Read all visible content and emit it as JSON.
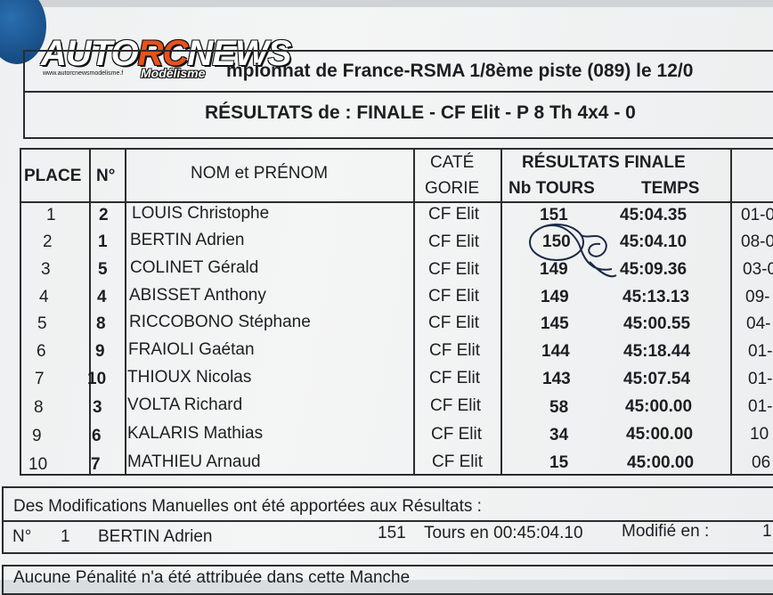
{
  "logo": {
    "brand_a": "AUTO",
    "brand_b": "RC",
    "brand_c": "NEWS",
    "sub": "Modélisme",
    "url": "www.autorcnewsmodelisme.f"
  },
  "header": {
    "title": "mpionnat de France-RSMA 1/8ème piste  (089) le 12/0",
    "results_line": "RÉSULTATS de :   FINALE  -  CF Elit  -  P 8 Th 4x4  -  0"
  },
  "table": {
    "col_place": "PLACE",
    "col_num": "N°",
    "col_name": "NOM et PRÉNOM",
    "col_cat_1": "CATÉ",
    "col_cat_2": "GORIE",
    "col_results": "RÉSULTATS FINALE",
    "col_laps": "Nb TOURS",
    "col_time": "TEMPS",
    "rows": [
      {
        "place": "1",
        "num": "2",
        "name": "LOUIS Christophe",
        "cat": "CF Elit",
        "laps": "151",
        "time": "45:04.35",
        "extra": "01-0"
      },
      {
        "place": "2",
        "num": "1",
        "name": "BERTIN Adrien",
        "cat": "CF Elit",
        "laps": "150",
        "time": "45:04.10",
        "extra": "08-0"
      },
      {
        "place": "3",
        "num": "5",
        "name": "COLINET Gérald",
        "cat": "CF Elit",
        "laps": "149",
        "time": "45:09.36",
        "extra": "03-0"
      },
      {
        "place": "4",
        "num": "4",
        "name": "ABISSET Anthony",
        "cat": "CF Elit",
        "laps": "149",
        "time": "45:13.13",
        "extra": "09-"
      },
      {
        "place": "5",
        "num": "8",
        "name": "RICCOBONO Stéphane",
        "cat": "CF Elit",
        "laps": "145",
        "time": "45:00.55",
        "extra": "04-"
      },
      {
        "place": "6",
        "num": "9",
        "name": "FRAIOLI Gaétan",
        "cat": "CF Elit",
        "laps": "144",
        "time": "45:18.44",
        "extra": "01-"
      },
      {
        "place": "7",
        "num": "10",
        "name": "THIOUX Nicolas",
        "cat": "CF Elit",
        "laps": "143",
        "time": "45:07.54",
        "extra": "01-"
      },
      {
        "place": "8",
        "num": "3",
        "name": "VOLTA Richard",
        "cat": "CF Elit",
        "laps": "58",
        "time": "45:00.00",
        "extra": "01-"
      },
      {
        "place": "9",
        "num": "6",
        "name": "KALARIS Mathias",
        "cat": "CF Elit",
        "laps": "34",
        "time": "45:00.00",
        "extra": "10"
      },
      {
        "place": "10",
        "num": "7",
        "name": "MATHIEU Arnaud",
        "cat": "CF Elit",
        "laps": "15",
        "time": "45:00.00",
        "extra": "06"
      }
    ]
  },
  "modifications": {
    "heading": "Des Modifications Manuelles ont été apportées aux Résultats :",
    "num_label": "N°",
    "num": "1",
    "name": "BERTIN Adrien",
    "laps": "151",
    "detail": "Tours en 00:45:04.10",
    "modified_label": "Modifié en :",
    "modified_value": "1"
  },
  "footer": {
    "partial": "Aucune Pénalité n'a été attribuée dans cette Manche"
  }
}
